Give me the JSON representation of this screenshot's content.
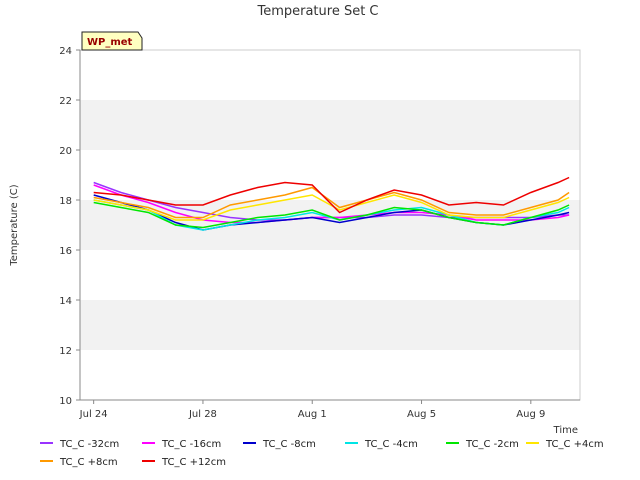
{
  "chart_data": {
    "type": "line",
    "title": "Temperature Set C",
    "xlabel": "Time",
    "ylabel": "Temperature (C)",
    "ylim": [
      10,
      24
    ],
    "yticks": [
      10,
      12,
      14,
      16,
      18,
      20,
      22,
      24
    ],
    "xlim": [
      -0.5,
      17.8
    ],
    "xticks": [
      {
        "day": 0,
        "label": "Jul 24"
      },
      {
        "day": 4,
        "label": "Jul 28"
      },
      {
        "day": 8,
        "label": "Aug 1"
      },
      {
        "day": 12,
        "label": "Aug 5"
      },
      {
        "day": 16,
        "label": "Aug 9"
      }
    ],
    "x_unit": "days since Jul 24",
    "grid": "alternating horizontal bands",
    "legend_position": "bottom",
    "annotation": "WP_met",
    "series": [
      {
        "name": "TC_C -32cm",
        "color": "#9933ff",
        "x": [
          0,
          1,
          2,
          3,
          4,
          5,
          6,
          7,
          8,
          9,
          10,
          11,
          12,
          13,
          14,
          15,
          16,
          17,
          17.4
        ],
        "y": [
          18.7,
          18.3,
          18.0,
          17.7,
          17.5,
          17.3,
          17.2,
          17.2,
          17.3,
          17.3,
          17.3,
          17.4,
          17.4,
          17.3,
          17.3,
          17.3,
          17.3,
          17.4,
          17.4
        ]
      },
      {
        "name": "TC_C -16cm",
        "color": "#ff00ff",
        "x": [
          0,
          1,
          2,
          3,
          4,
          5,
          6,
          7,
          8,
          9,
          10,
          11,
          12,
          13,
          14,
          15,
          16,
          17,
          17.4
        ],
        "y": [
          18.6,
          18.2,
          17.9,
          17.5,
          17.2,
          17.1,
          17.1,
          17.2,
          17.3,
          17.3,
          17.4,
          17.5,
          17.5,
          17.4,
          17.2,
          17.2,
          17.2,
          17.3,
          17.4
        ]
      },
      {
        "name": "TC_C -8cm",
        "color": "#0000cc",
        "x": [
          0,
          1,
          2,
          3,
          4,
          5,
          6,
          7,
          8,
          9,
          10,
          11,
          12,
          13,
          14,
          15,
          16,
          17,
          17.4
        ],
        "y": [
          18.2,
          17.9,
          17.6,
          17.1,
          16.8,
          17.0,
          17.1,
          17.2,
          17.3,
          17.1,
          17.3,
          17.5,
          17.6,
          17.3,
          17.1,
          17.0,
          17.2,
          17.4,
          17.5
        ]
      },
      {
        "name": "TC_C -4cm",
        "color": "#00e5e5",
        "x": [
          0,
          1,
          2,
          3,
          4,
          5,
          6,
          7,
          8,
          9,
          10,
          11,
          12,
          13,
          14,
          15,
          16,
          17,
          17.4
        ],
        "y": [
          18.0,
          17.8,
          17.6,
          17.0,
          16.8,
          17.0,
          17.2,
          17.3,
          17.5,
          17.2,
          17.4,
          17.6,
          17.7,
          17.4,
          17.1,
          17.0,
          17.3,
          17.5,
          17.7
        ]
      },
      {
        "name": "TC_C -2cm",
        "color": "#00e600",
        "x": [
          0,
          1,
          2,
          3,
          4,
          5,
          6,
          7,
          8,
          9,
          10,
          11,
          12,
          13,
          14,
          15,
          16,
          17,
          17.4
        ],
        "y": [
          17.9,
          17.7,
          17.5,
          17.0,
          16.9,
          17.1,
          17.3,
          17.4,
          17.6,
          17.2,
          17.4,
          17.7,
          17.6,
          17.3,
          17.1,
          17.0,
          17.3,
          17.6,
          17.8
        ]
      },
      {
        "name": "TC_C +4cm",
        "color": "#ffe600",
        "x": [
          0,
          1,
          2,
          3,
          4,
          5,
          6,
          7,
          8,
          9,
          10,
          11,
          12,
          13,
          14,
          15,
          16,
          17,
          17.4
        ],
        "y": [
          18.0,
          17.8,
          17.6,
          17.2,
          17.2,
          17.6,
          17.8,
          18.0,
          18.2,
          17.6,
          17.9,
          18.2,
          17.9,
          17.4,
          17.3,
          17.3,
          17.6,
          17.9,
          18.1
        ]
      },
      {
        "name": "TC_C +8cm",
        "color": "#ff9900",
        "x": [
          0,
          1,
          2,
          3,
          4,
          5,
          6,
          7,
          8,
          9,
          10,
          11,
          12,
          13,
          14,
          15,
          16,
          17,
          17.4
        ],
        "y": [
          18.1,
          17.9,
          17.7,
          17.3,
          17.3,
          17.8,
          18.0,
          18.2,
          18.5,
          17.7,
          18.0,
          18.3,
          18.0,
          17.5,
          17.4,
          17.4,
          17.7,
          18.0,
          18.3
        ]
      },
      {
        "name": "TC_C +12cm",
        "color": "#ee0000",
        "x": [
          0,
          1,
          2,
          3,
          4,
          5,
          6,
          7,
          8,
          9,
          10,
          11,
          12,
          13,
          14,
          15,
          16,
          17,
          17.4
        ],
        "y": [
          18.3,
          18.2,
          18.0,
          17.8,
          17.8,
          18.2,
          18.5,
          18.7,
          18.6,
          17.5,
          18.0,
          18.4,
          18.2,
          17.8,
          17.9,
          17.8,
          18.3,
          18.7,
          18.9
        ]
      }
    ]
  }
}
